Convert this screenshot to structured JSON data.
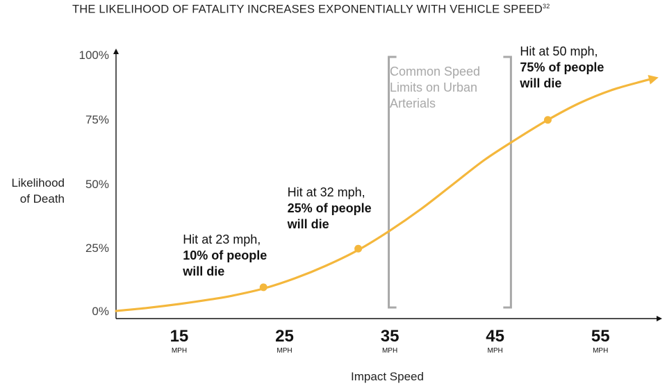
{
  "chart_data": {
    "type": "line",
    "title": "THE LIKELIHOOD OF FATALITY INCREASES EXPONENTIALLY WITH VEHICLE SPEED",
    "title_superscript": "32",
    "xlabel": "Impact Speed",
    "ylabel": "Likelihood of Death",
    "xlim": [
      9,
      60
    ],
    "ylim": [
      0,
      100
    ],
    "x_ticks": [
      {
        "value": 15,
        "label": "15",
        "unit": "MPH"
      },
      {
        "value": 25,
        "label": "25",
        "unit": "MPH"
      },
      {
        "value": 35,
        "label": "35",
        "unit": "MPH"
      },
      {
        "value": 45,
        "label": "45",
        "unit": "MPH"
      },
      {
        "value": 55,
        "label": "55",
        "unit": "MPH"
      }
    ],
    "y_ticks": [
      {
        "value": 0,
        "label": "0%"
      },
      {
        "value": 25,
        "label": "25%"
      },
      {
        "value": 50,
        "label": "50%"
      },
      {
        "value": 75,
        "label": "75%"
      },
      {
        "value": 100,
        "label": "100%"
      }
    ],
    "series": [
      {
        "color": "#F4B73C",
        "x": [
          9,
          12,
          15,
          18,
          20,
          23,
          26,
          29,
          32,
          35,
          38,
          41,
          44,
          47,
          50,
          53,
          56,
          59,
          60
        ],
        "y": [
          0.8,
          2,
          3.5,
          5.3,
          6.7,
          9.5,
          13.5,
          18.5,
          24.5,
          32,
          40.5,
          50,
          59.5,
          67.5,
          75,
          81.5,
          86.5,
          90,
          91
        ]
      }
    ],
    "highlight_points": [
      {
        "x": 23,
        "y": 10,
        "label_line1": "Hit at 23 mph,",
        "label_bold": "10% of people",
        "label_line3": "will die"
      },
      {
        "x": 32,
        "y": 25,
        "label_line1": "Hit at 32 mph,",
        "label_bold": "25% of people",
        "label_line3": "will die"
      },
      {
        "x": 50,
        "y": 75,
        "label_line1": "Hit at 50 mph,",
        "label_bold": "75% of people",
        "label_line3": "will die"
      }
    ],
    "band": {
      "x_start": 34.9,
      "x_end": 46.5,
      "label": [
        "Common Speed",
        "Limits on Urban",
        "Arterials"
      ],
      "color": "#a8a8a8"
    },
    "grid": false,
    "legend": "none"
  }
}
